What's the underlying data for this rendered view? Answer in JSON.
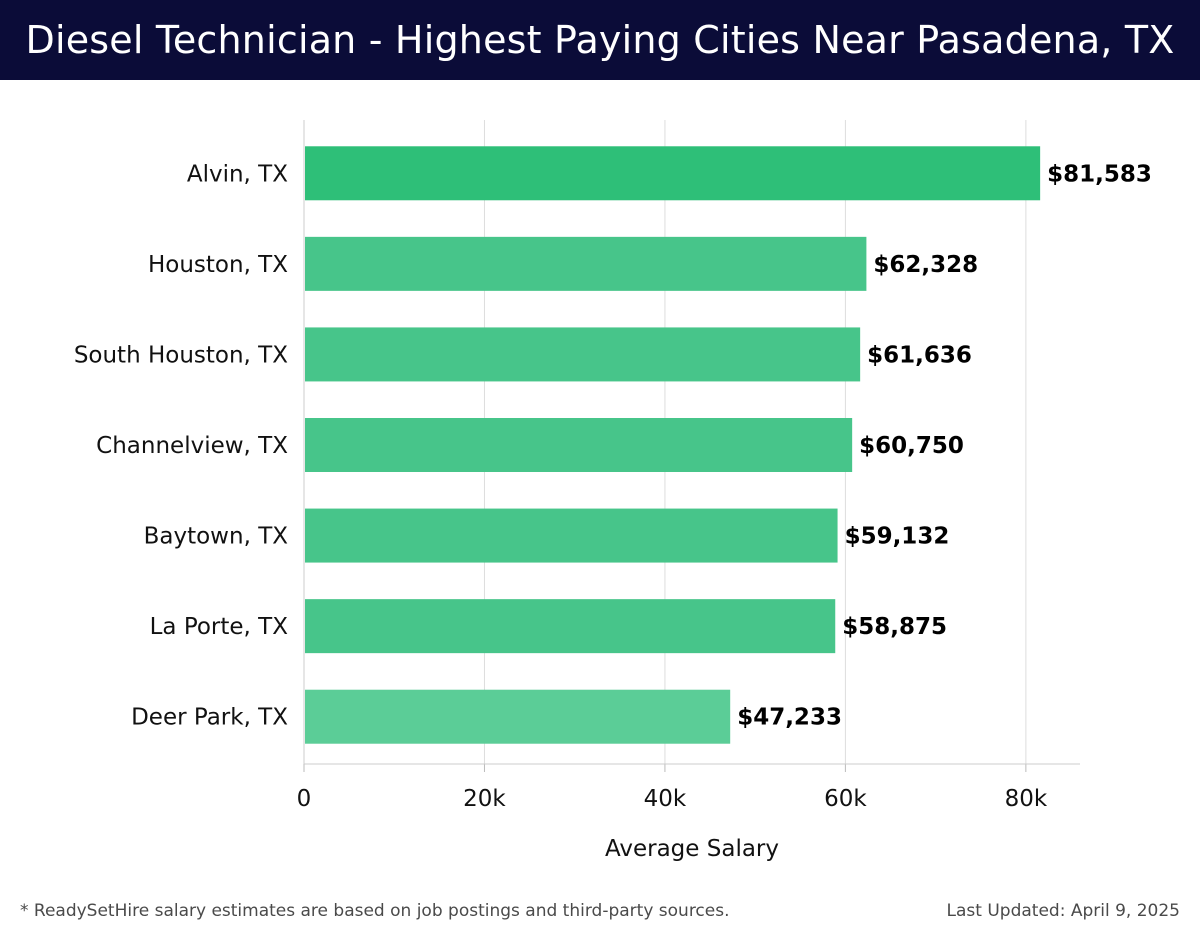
{
  "header": {
    "title": "Diesel Technician - Highest Paying Cities Near Pasadena, TX"
  },
  "footer": {
    "note": "* ReadySetHire salary estimates are based on job postings and third-party sources.",
    "updated": "Last Updated: April 9, 2025"
  },
  "colors": {
    "header_bg": "#0b0c38",
    "bar_top": "#2ebf78",
    "bar": "#47c58a",
    "bar_low": "#5bcd97",
    "grid": "#dddddd"
  },
  "chart_data": {
    "type": "bar",
    "orientation": "horizontal",
    "title": "Diesel Technician - Highest Paying Cities Near Pasadena, TX",
    "xlabel": "Average Salary",
    "ylabel": "",
    "xlim": [
      0,
      86000
    ],
    "xticks": [
      0,
      20000,
      40000,
      60000,
      80000
    ],
    "xtick_labels": [
      "0",
      "20k",
      "40k",
      "60k",
      "80k"
    ],
    "grid": true,
    "categories": [
      "Alvin, TX",
      "Houston, TX",
      "South Houston, TX",
      "Channelview, TX",
      "Baytown, TX",
      "La Porte, TX",
      "Deer Park, TX"
    ],
    "values": [
      81583,
      62328,
      61636,
      60750,
      59132,
      58875,
      47233
    ],
    "value_labels": [
      "$81,583",
      "$62,328",
      "$61,636",
      "$60,750",
      "$59,132",
      "$58,875",
      "$47,233"
    ]
  }
}
